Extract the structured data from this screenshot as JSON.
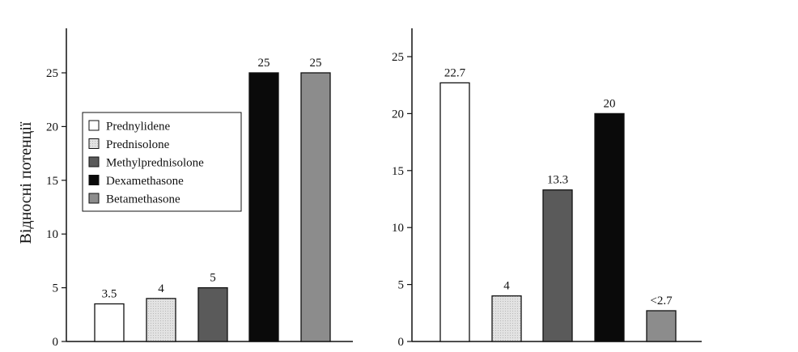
{
  "chart_data": [
    {
      "type": "bar",
      "ylabel": "Відносні потенції",
      "ylim": [
        0,
        27
      ],
      "yticks": [
        "0",
        "5",
        "10",
        "15",
        "20",
        "25"
      ],
      "categories": [
        "Prednylidene",
        "Prednisolone",
        "Methylprednisolone",
        "Dexamethasone",
        "Betamethasone"
      ],
      "values": [
        3.5,
        4,
        5,
        25,
        25
      ],
      "data_labels": [
        "3.5",
        "4",
        "5",
        "25",
        "25"
      ],
      "colors": [
        "#ffffff",
        "#d4d4d4",
        "#5a5a5a",
        "#0a0a0a",
        "#8c8c8c"
      ],
      "legend": {
        "placement": "center-left",
        "entries": [
          "Prednylidene",
          "Prednisolone",
          "Methylprednisolone",
          "Dexamethasone",
          "Betamethasone"
        ]
      }
    },
    {
      "type": "bar",
      "ylim": [
        0,
        25.5
      ],
      "yticks": [
        "0",
        "5",
        "10",
        "15",
        "20",
        "25"
      ],
      "categories": [
        "Prednylidene",
        "Prednisolone",
        "Methylprednisolone",
        "Dexamethasone",
        "Betamethasone"
      ],
      "values": [
        22.7,
        4,
        13.3,
        20,
        2.7
      ],
      "data_labels": [
        "22.7",
        "4",
        "13.3",
        "20",
        "<2.7"
      ],
      "colors": [
        "#ffffff",
        "#d4d4d4",
        "#5a5a5a",
        "#0a0a0a",
        "#8c8c8c"
      ]
    }
  ]
}
